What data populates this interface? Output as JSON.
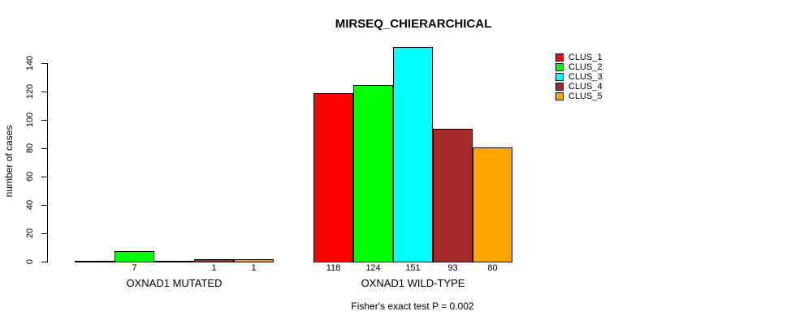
{
  "chart_data": {
    "type": "bar",
    "title": "MIRSEQ_CHIERARCHICAL",
    "ylabel": "number of cases",
    "annotation": "Fisher's exact test P = 0.002",
    "categories": [
      "OXNAD1 MUTATED",
      "OXNAD1 WILD-TYPE"
    ],
    "series": [
      {
        "name": "CLUS_1",
        "color": "#FF0000",
        "values": [
          0,
          118
        ]
      },
      {
        "name": "CLUS_2",
        "color": "#00FF00",
        "values": [
          7,
          124
        ]
      },
      {
        "name": "CLUS_3",
        "color": "#00FFFF",
        "values": [
          0,
          151
        ]
      },
      {
        "name": "CLUS_4",
        "color": "#A52A2A",
        "values": [
          1,
          93
        ]
      },
      {
        "name": "CLUS_5",
        "color": "#FFA500",
        "values": [
          1,
          80
        ]
      }
    ],
    "yticks": [
      0,
      20,
      40,
      60,
      80,
      100,
      120,
      140
    ],
    "ylim": [
      0,
      140
    ],
    "bar_value_labels": {
      "OXNAD1 MUTATED": [
        "",
        "7",
        "",
        "1",
        "1"
      ],
      "OXNAD1 WILD-TYPE": [
        "118",
        "124",
        "151",
        "93",
        "80"
      ]
    },
    "legend_position": "right",
    "grid": false,
    "axis_color": "#000000",
    "background_color": "#FFFFFF"
  }
}
